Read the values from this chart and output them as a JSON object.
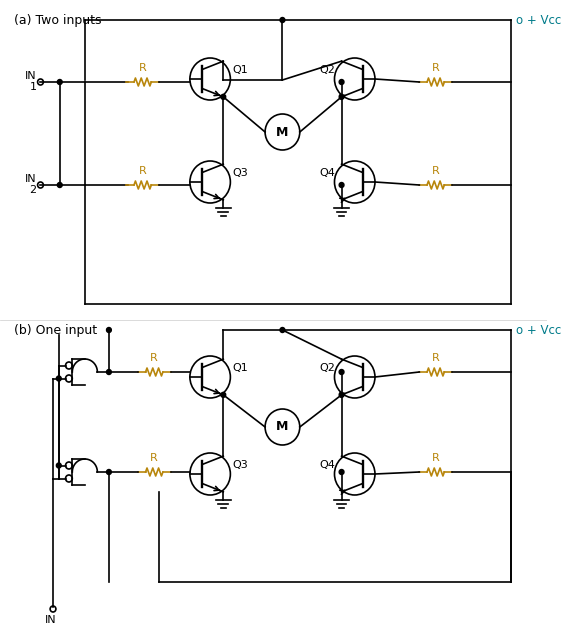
{
  "title_a": "(a) Two inputs",
  "title_b": "(b) One input",
  "vcc_label": "o + Vcc",
  "in1_label": "IN\n1",
  "in2_label": "IN\n2",
  "in_label": "IN",
  "R_color": "#b8860b",
  "Q_color": "#000000",
  "line_color": "#000000",
  "label_color_cyan": "#007b8a",
  "bg_color": "#ffffff",
  "fig_width": 5.67,
  "fig_height": 6.42,
  "dpi": 100
}
